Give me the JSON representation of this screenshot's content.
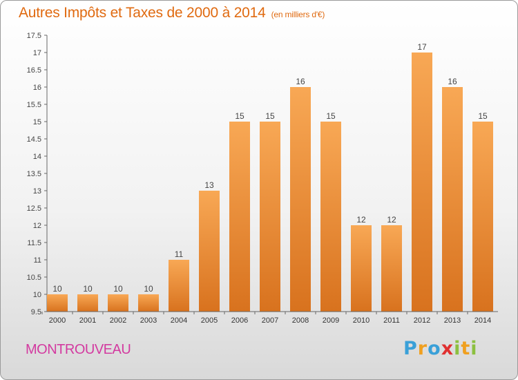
{
  "title": "Autres Impôts et Taxes de 2000 à 2014",
  "unit_note": "(en milliers d'€)",
  "place": "MONTROUVEAU",
  "brand": "Proxiti",
  "colors": {
    "accent": "#e06a10",
    "place": "#d33aa0",
    "bar_top": "#f8a855",
    "bar_bottom": "#d8721e"
  },
  "chart_data": {
    "type": "bar",
    "title": "Autres Impôts et Taxes de 2000 à 2014",
    "xlabel": "",
    "ylabel": "",
    "categories": [
      "2000",
      "2001",
      "2002",
      "2003",
      "2004",
      "2005",
      "2006",
      "2007",
      "2008",
      "2009",
      "2010",
      "2011",
      "2012",
      "2013",
      "2014"
    ],
    "values": [
      10,
      10,
      10,
      10,
      11,
      13,
      15,
      15,
      16,
      15,
      12,
      12,
      17,
      16,
      15
    ],
    "ylim": [
      9.5,
      17.5
    ],
    "yticks": [
      9.5,
      10,
      10.5,
      11,
      11.5,
      12,
      12.5,
      13,
      13.5,
      14,
      14.5,
      15,
      15.5,
      16,
      16.5,
      17,
      17.5
    ],
    "ytick_labels": [
      "9.5",
      "10",
      "10.5",
      "11",
      "11.5",
      "12",
      "12.5",
      "13",
      "13.5",
      "14",
      "14.5",
      "15",
      "15.5",
      "16",
      "16.5",
      "17",
      "17.5"
    ],
    "data_labels": [
      "10",
      "10",
      "10",
      "10",
      "11",
      "13",
      "15",
      "15",
      "16",
      "15",
      "12",
      "12",
      "17",
      "16",
      "15"
    ],
    "grid": false,
    "legend": "none"
  }
}
